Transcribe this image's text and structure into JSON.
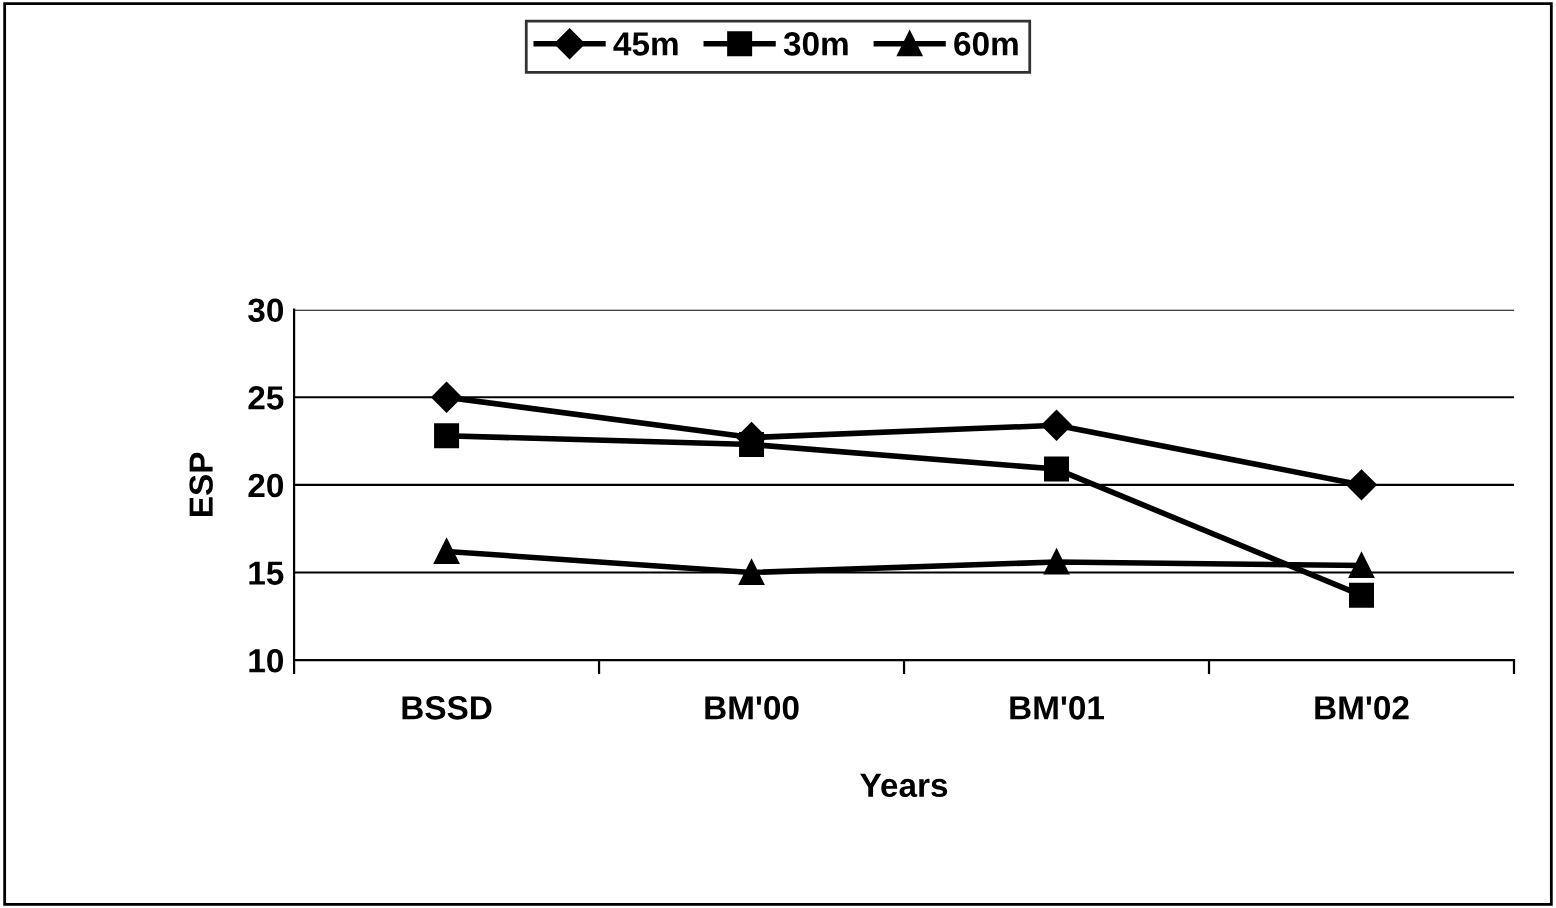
{
  "chart_data": {
    "type": "line",
    "xlabel": "Years",
    "ylabel": "ESP",
    "categories": [
      "BSSD",
      "BM'00",
      "BM'01",
      "BM'02"
    ],
    "series": [
      {
        "name": "45m",
        "color": "#000000",
        "marker": "diamond",
        "values": [
          25,
          22.7,
          23.4,
          20
        ]
      },
      {
        "name": "30m",
        "color": "#000000",
        "marker": "square",
        "values": [
          22.8,
          22.3,
          20.9,
          13.7
        ]
      },
      {
        "name": "60m",
        "color": "#000000",
        "marker": "triangle",
        "values": [
          16.2,
          15.0,
          15.6,
          15.4
        ]
      }
    ],
    "ylim": [
      10,
      30
    ],
    "yticks": [
      10,
      15,
      20,
      25,
      30
    ],
    "grid": "y",
    "legend": "top",
    "line_style": "solid"
  }
}
